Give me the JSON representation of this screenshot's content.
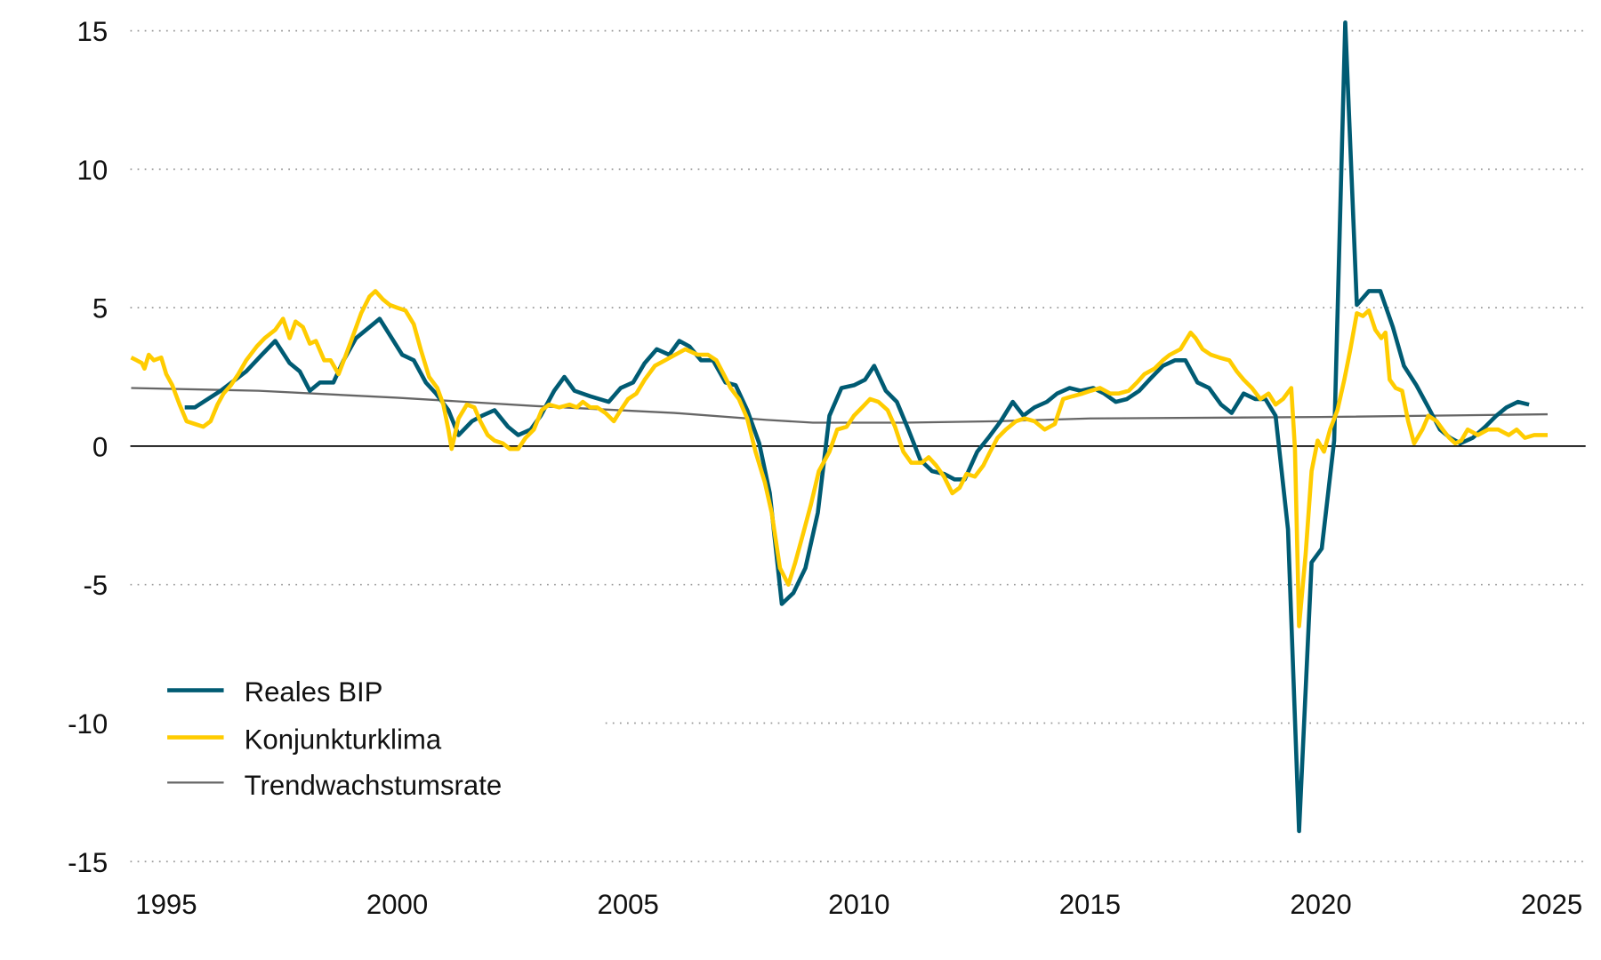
{
  "chart_data": {
    "type": "line",
    "title": "",
    "xlabel": "",
    "ylabel": "",
    "xlim": [
      1994.2,
      2025.7
    ],
    "ylim": [
      -15,
      15
    ],
    "x_ticks": [
      "1995",
      "2000",
      "2005",
      "2010",
      "2015",
      "2020",
      "2025"
    ],
    "x_tick_values": [
      1995,
      2000,
      2005,
      2010,
      2015,
      2020,
      2025
    ],
    "y_ticks": [
      "15",
      "10",
      "5",
      "0",
      "-5",
      "-10",
      "-15"
    ],
    "y_tick_values": [
      15,
      10,
      5,
      0,
      -5,
      -10,
      -15
    ],
    "grid": "horizontal dotted",
    "zero_line": true,
    "legend_position": "bottom-left",
    "series": [
      {
        "name": "Reales BIP",
        "color": "#005b73",
        "x": [
          1995.4,
          1995.62,
          1996.18,
          1996.73,
          1997.07,
          1997.36,
          1997.67,
          1997.89,
          1998.11,
          1998.33,
          1998.62,
          1998.84,
          1999.11,
          1999.33,
          1999.62,
          2000.11,
          2000.36,
          2000.62,
          2000.84,
          2001.11,
          2001.33,
          2001.62,
          2001.84,
          2002.11,
          2002.4,
          2002.62,
          2002.89,
          2003.11,
          2003.4,
          2003.62,
          2003.84,
          2004.18,
          2004.58,
          2004.84,
          2005.11,
          2005.36,
          2005.62,
          2005.89,
          2006.11,
          2006.33,
          2006.58,
          2006.84,
          2007.11,
          2007.33,
          2007.58,
          2007.84,
          2008.07,
          2008.33,
          2008.58,
          2008.84,
          2009.11,
          2009.36,
          2009.62,
          2009.89,
          2010.13,
          2010.33,
          2010.58,
          2010.82,
          2011.07,
          2011.33,
          2011.58,
          2011.84,
          2012.07,
          2012.29,
          2012.56,
          2012.8,
          2013.07,
          2013.33,
          2013.56,
          2013.8,
          2014.07,
          2014.29,
          2014.56,
          2014.8,
          2015.07,
          2015.31,
          2015.56,
          2015.8,
          2016.07,
          2016.29,
          2016.58,
          2016.84,
          2017.07,
          2017.33,
          2017.58,
          2017.84,
          2018.07,
          2018.33,
          2018.58,
          2018.8,
          2019.02,
          2019.29,
          2019.53,
          2019.8,
          2020.02,
          2020.29,
          2020.53,
          2020.78,
          2021.04,
          2021.29,
          2021.56,
          2021.8,
          2022.07,
          2022.33,
          2022.58,
          2022.8,
          2023.02,
          2023.29,
          2023.56,
          2023.8,
          2024.02,
          2024.27,
          2024.51
        ],
        "values": [
          1.4,
          1.4,
          2.0,
          2.7,
          3.3,
          3.8,
          3.0,
          2.7,
          2.0,
          2.3,
          2.3,
          3.1,
          3.9,
          4.2,
          4.6,
          3.3,
          3.1,
          2.3,
          1.9,
          1.3,
          0.4,
          0.9,
          1.1,
          1.3,
          0.7,
          0.4,
          0.6,
          1.1,
          2.0,
          2.5,
          2.0,
          1.8,
          1.6,
          2.1,
          2.3,
          3.0,
          3.5,
          3.3,
          3.8,
          3.6,
          3.1,
          3.1,
          2.3,
          2.2,
          1.3,
          0.1,
          -1.7,
          -5.7,
          -5.3,
          -4.4,
          -2.4,
          1.1,
          2.1,
          2.2,
          2.4,
          2.9,
          2.0,
          1.6,
          0.6,
          -0.5,
          -0.9,
          -1.0,
          -1.2,
          -1.2,
          -0.2,
          0.3,
          0.9,
          1.6,
          1.1,
          1.4,
          1.6,
          1.9,
          2.1,
          2.0,
          2.1,
          1.9,
          1.6,
          1.7,
          2.0,
          2.4,
          2.9,
          3.1,
          3.1,
          2.3,
          2.1,
          1.5,
          1.2,
          1.9,
          1.7,
          1.7,
          1.1,
          -3.0,
          -13.9,
          -4.2,
          -3.7,
          0.2,
          15.3,
          5.1,
          5.6,
          5.6,
          4.3,
          2.9,
          2.2,
          1.4,
          0.6,
          0.3,
          0.1,
          0.3,
          0.7,
          1.1,
          1.4,
          1.6,
          1.5
        ]
      },
      {
        "name": "Konjunkturklima",
        "color": "#ffcc00",
        "x": [
          1994.24,
          1994.36,
          1994.47,
          1994.53,
          1994.62,
          1994.73,
          1994.89,
          1995.0,
          1995.13,
          1995.29,
          1995.44,
          1995.62,
          1995.8,
          1995.96,
          1996.11,
          1996.24,
          1996.4,
          1996.56,
          1996.73,
          1996.96,
          1997.13,
          1997.36,
          1997.53,
          1997.67,
          1997.8,
          1997.96,
          1998.11,
          1998.24,
          1998.42,
          1998.56,
          1998.73,
          1998.87,
          1999.07,
          1999.22,
          1999.4,
          1999.53,
          1999.69,
          1999.84,
          2000.0,
          2000.18,
          2000.36,
          2000.51,
          2000.69,
          2000.87,
          2001.0,
          2001.11,
          2001.18,
          2001.33,
          2001.51,
          2001.67,
          2001.8,
          2001.96,
          2002.11,
          2002.29,
          2002.44,
          2002.62,
          2002.78,
          2002.96,
          2003.13,
          2003.29,
          2003.51,
          2003.73,
          2003.89,
          2004.02,
          2004.18,
          2004.33,
          2004.51,
          2004.69,
          2004.84,
          2005.0,
          2005.18,
          2005.36,
          2005.58,
          2005.8,
          2006.02,
          2006.24,
          2006.51,
          2006.73,
          2006.91,
          2007.07,
          2007.22,
          2007.4,
          2007.58,
          2007.76,
          2007.96,
          2008.11,
          2008.29,
          2008.47,
          2008.62,
          2008.8,
          2008.96,
          2009.13,
          2009.36,
          2009.53,
          2009.73,
          2009.89,
          2010.07,
          2010.24,
          2010.42,
          2010.62,
          2010.78,
          2010.96,
          2011.13,
          2011.36,
          2011.51,
          2011.67,
          2011.84,
          2012.02,
          2012.18,
          2012.33,
          2012.51,
          2012.69,
          2012.84,
          2013.0,
          2013.18,
          2013.4,
          2013.58,
          2013.8,
          2014.02,
          2014.24,
          2014.42,
          2014.62,
          2014.84,
          2015.02,
          2015.22,
          2015.44,
          2015.62,
          2015.84,
          2016.02,
          2016.18,
          2016.4,
          2016.58,
          2016.73,
          2016.96,
          2017.18,
          2017.29,
          2017.44,
          2017.62,
          2017.8,
          2018.02,
          2018.18,
          2018.33,
          2018.51,
          2018.69,
          2018.87,
          2019.02,
          2019.18,
          2019.36,
          2019.44,
          2019.53,
          2019.67,
          2019.8,
          2019.93,
          2020.07,
          2020.2,
          2020.36,
          2020.51,
          2020.64,
          2020.78,
          2020.91,
          2021.04,
          2021.18,
          2021.31,
          2021.4,
          2021.49,
          2021.62,
          2021.76,
          2021.89,
          2022.02,
          2022.2,
          2022.33,
          2022.51,
          2022.64,
          2022.78,
          2022.91,
          2023.04,
          2023.18,
          2023.4,
          2023.62,
          2023.84,
          2024.07,
          2024.24,
          2024.42,
          2024.62,
          2024.78,
          2024.91
        ],
        "values": [
          3.2,
          3.1,
          3.0,
          2.8,
          3.3,
          3.1,
          3.2,
          2.6,
          2.2,
          1.5,
          0.9,
          0.8,
          0.7,
          0.9,
          1.5,
          1.9,
          2.2,
          2.6,
          3.1,
          3.6,
          3.9,
          4.2,
          4.6,
          3.9,
          4.5,
          4.3,
          3.7,
          3.8,
          3.1,
          3.1,
          2.6,
          3.2,
          4.1,
          4.8,
          5.4,
          5.6,
          5.3,
          5.1,
          5.0,
          4.9,
          4.4,
          3.5,
          2.5,
          2.1,
          1.5,
          0.6,
          -0.1,
          1.0,
          1.5,
          1.4,
          0.9,
          0.4,
          0.2,
          0.1,
          -0.1,
          -0.1,
          0.3,
          0.6,
          1.3,
          1.5,
          1.4,
          1.5,
          1.4,
          1.6,
          1.4,
          1.4,
          1.2,
          0.9,
          1.3,
          1.7,
          1.9,
          2.4,
          2.9,
          3.1,
          3.3,
          3.5,
          3.3,
          3.3,
          3.1,
          2.6,
          2.1,
          1.7,
          1.0,
          -0.2,
          -1.3,
          -2.4,
          -4.4,
          -5.0,
          -4.2,
          -3.1,
          -2.1,
          -0.9,
          -0.2,
          0.6,
          0.7,
          1.1,
          1.4,
          1.7,
          1.6,
          1.3,
          0.7,
          -0.2,
          -0.6,
          -0.6,
          -0.4,
          -0.7,
          -1.1,
          -1.7,
          -1.5,
          -1.0,
          -1.1,
          -0.7,
          -0.2,
          0.3,
          0.6,
          0.9,
          1.0,
          0.9,
          0.6,
          0.8,
          1.7,
          1.8,
          1.9,
          2.0,
          2.1,
          1.9,
          1.9,
          2.0,
          2.3,
          2.6,
          2.8,
          3.1,
          3.3,
          3.5,
          4.1,
          3.9,
          3.5,
          3.3,
          3.2,
          3.1,
          2.7,
          2.4,
          2.1,
          1.7,
          1.9,
          1.5,
          1.7,
          2.1,
          -0.1,
          -6.5,
          -3.9,
          -0.9,
          0.2,
          -0.2,
          0.6,
          1.3,
          2.4,
          3.5,
          4.8,
          4.7,
          4.9,
          4.2,
          3.9,
          4.1,
          2.4,
          2.1,
          2.0,
          0.9,
          0.1,
          0.6,
          1.1,
          0.9,
          0.6,
          0.3,
          0.1,
          0.2,
          0.6,
          0.4,
          0.6,
          0.6,
          0.4,
          0.6,
          0.3,
          0.4,
          0.4,
          0.4
        ]
      },
      {
        "name": "Trendwachstumsrate",
        "color": "#666666",
        "x": [
          1994.24,
          1997,
          2000,
          2003,
          2006,
          2008,
          2009,
          2011,
          2013,
          2015,
          2020,
          2024.91
        ],
        "values": [
          2.1,
          2.0,
          1.75,
          1.45,
          1.2,
          0.95,
          0.85,
          0.85,
          0.9,
          1.0,
          1.05,
          1.15
        ]
      }
    ]
  }
}
